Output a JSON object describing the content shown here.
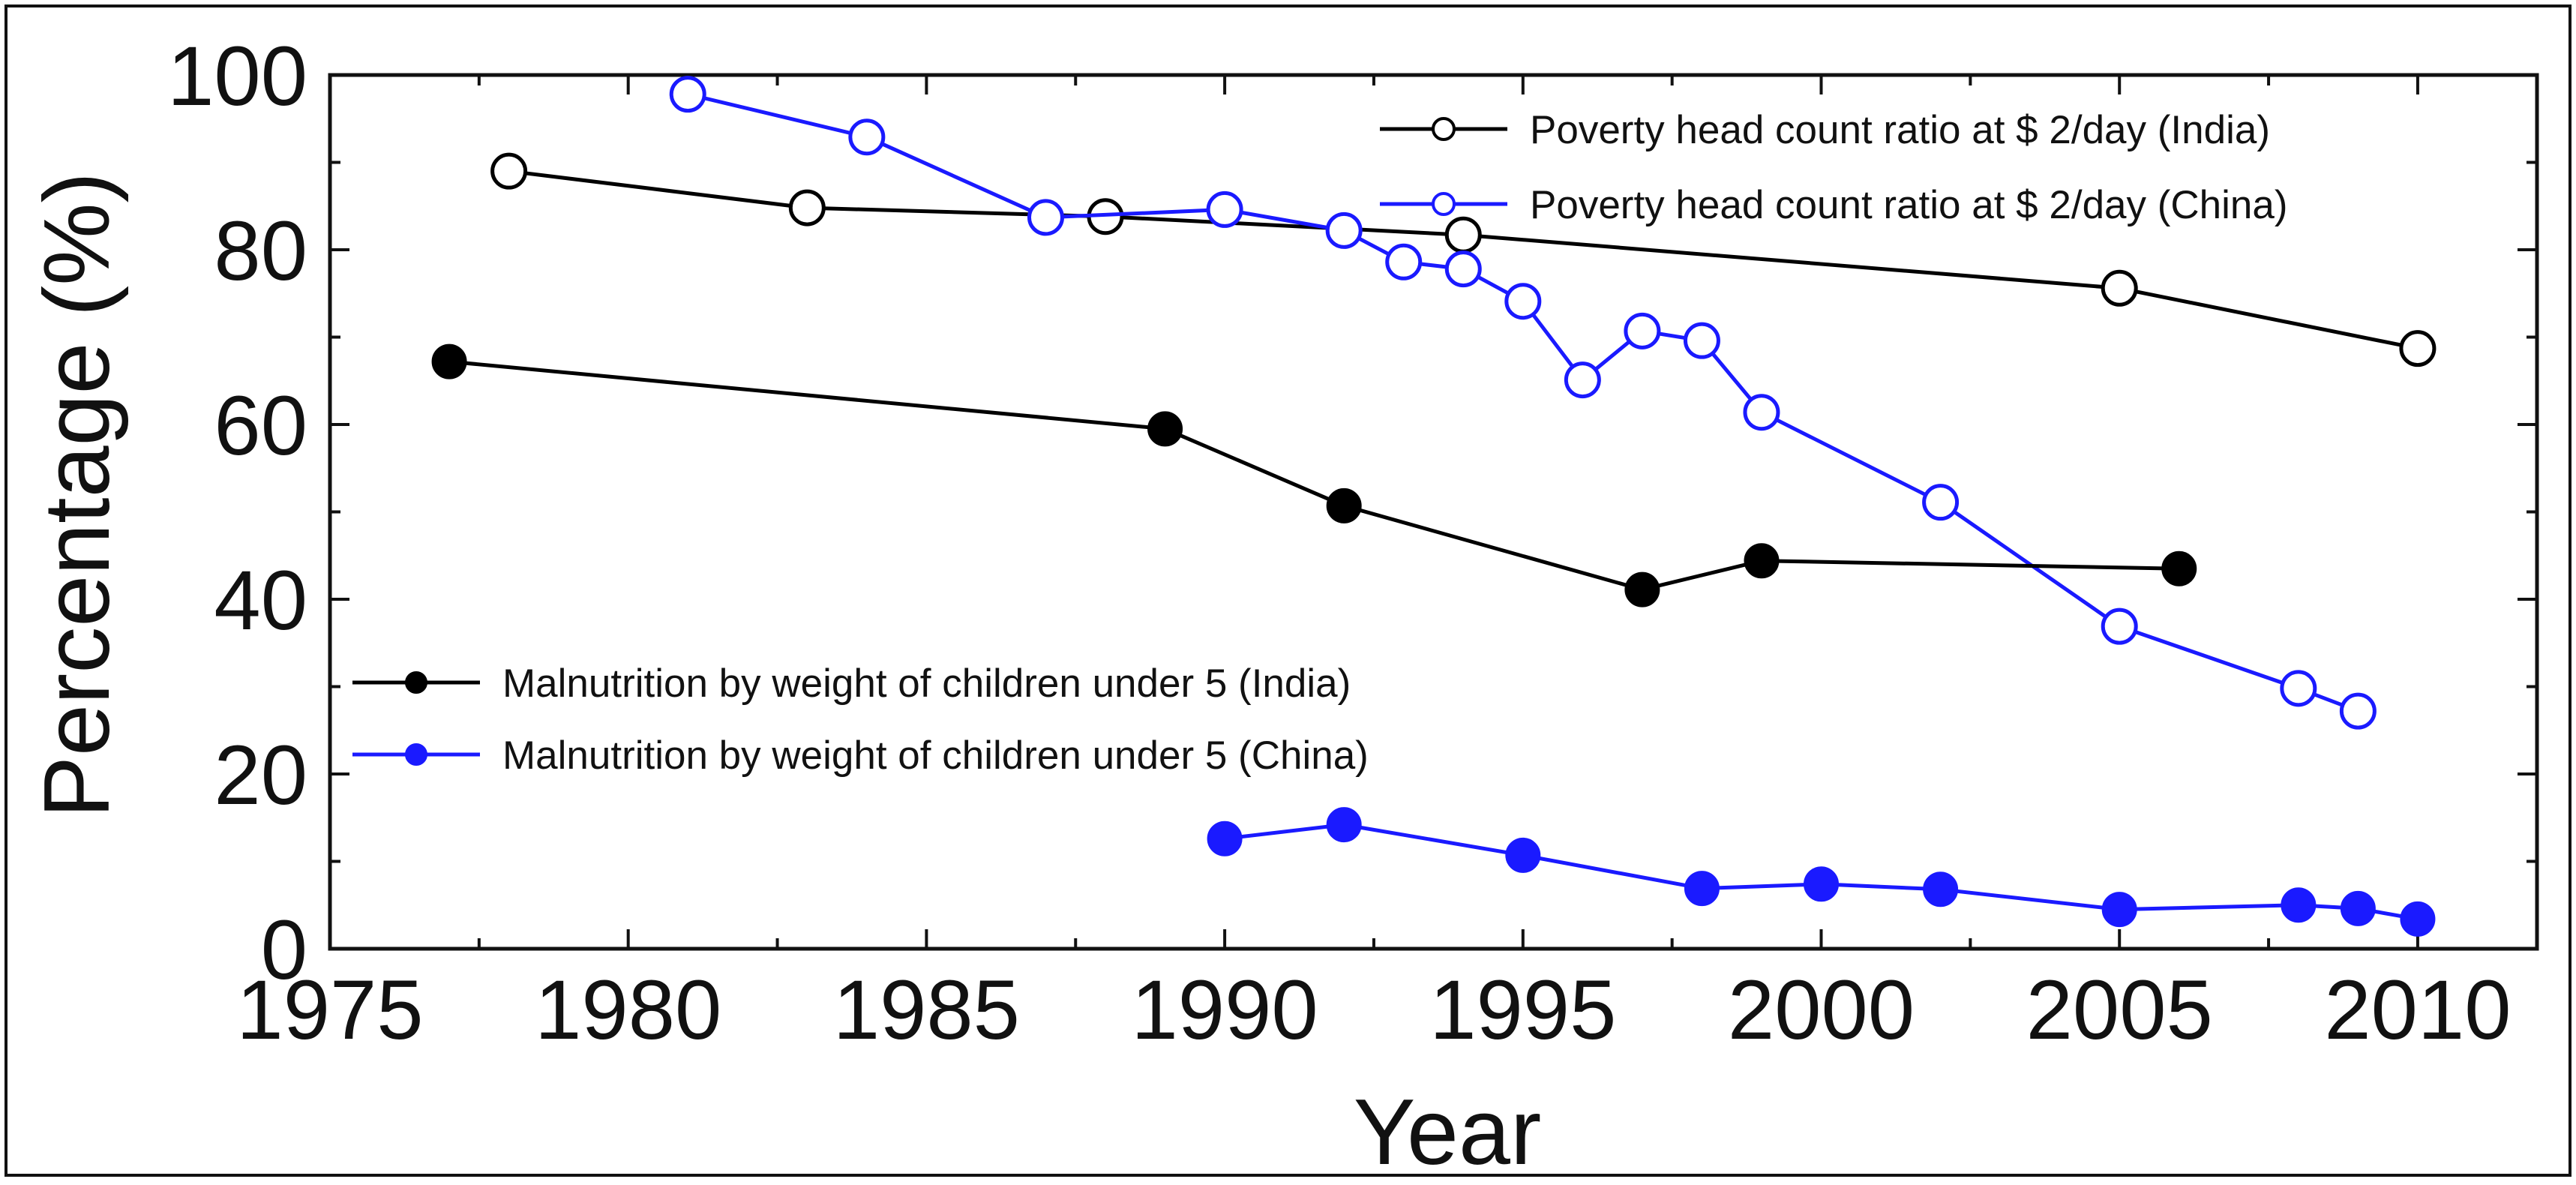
{
  "chart_data": {
    "type": "line",
    "xlabel": "Year",
    "ylabel": "Percentage (%)",
    "xlim": [
      1975,
      2012
    ],
    "ylim": [
      0,
      100
    ],
    "x_ticks": [
      1975,
      1980,
      1985,
      1990,
      1995,
      2000,
      2005,
      2010
    ],
    "x_minor_step": 2.5,
    "y_ticks": [
      0,
      20,
      40,
      60,
      80,
      100
    ],
    "y_minor_step": 10,
    "grid": false,
    "series": [
      {
        "id": "poverty-india",
        "name": "Poverty head count ratio at $ 2/day (India)",
        "color": "#000000",
        "marker": "open-circle",
        "legend": "top-right",
        "x": [
          1978,
          1983,
          1988,
          1994,
          2005,
          2010
        ],
        "y": [
          89,
          84.8,
          83.8,
          81.7,
          75.6,
          68.7
        ]
      },
      {
        "id": "poverty-china",
        "name": "Poverty head count ratio at $ 2/day (China)",
        "color": "#1a1aff",
        "marker": "open-circle",
        "legend": "top-right",
        "x": [
          1981,
          1984,
          1987,
          1990,
          1992,
          1993,
          1994,
          1995,
          1996,
          1997,
          1998,
          1999,
          2002,
          2005,
          2008,
          2009
        ],
        "y": [
          97.8,
          92.9,
          83.7,
          84.6,
          82.2,
          78.6,
          77.8,
          74.1,
          65.1,
          70.7,
          69.6,
          61.4,
          51.1,
          36.9,
          29.8,
          27.2
        ]
      },
      {
        "id": "malnutrition-india",
        "name": "Malnutrition by weight of children under 5 (India)",
        "color": "#000000",
        "marker": "filled-circle",
        "legend": "middle-left",
        "x": [
          1977,
          1989,
          1992,
          1997,
          1999,
          2006
        ],
        "y": [
          67.2,
          59.5,
          50.7,
          41.1,
          44.4,
          43.5
        ]
      },
      {
        "id": "malnutrition-china",
        "name": "Malnutrition by weight of children under 5 (China)",
        "color": "#1a1aff",
        "marker": "filled-circle",
        "legend": "middle-left",
        "x": [
          1990,
          1992,
          1995,
          1998,
          2000,
          2002,
          2005,
          2008,
          2009,
          2010
        ],
        "y": [
          12.6,
          14.2,
          10.7,
          6.9,
          7.4,
          6.8,
          4.5,
          5.0,
          4.6,
          3.4
        ]
      }
    ]
  }
}
